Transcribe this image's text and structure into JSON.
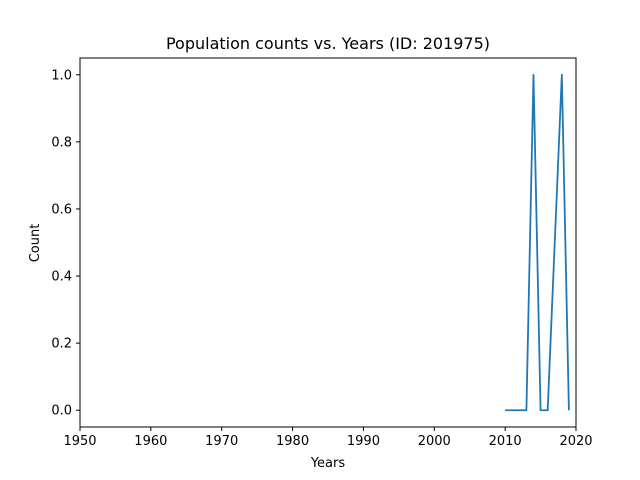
{
  "chart_data": {
    "type": "line",
    "title": "Population counts vs. Years (ID: 201975)",
    "xlabel": "Years",
    "ylabel": "Count",
    "xlim": [
      1950,
      2020
    ],
    "ylim": [
      -0.05,
      1.05
    ],
    "xticks": [
      1950,
      1960,
      1970,
      1980,
      1990,
      2000,
      2010,
      2020
    ],
    "yticks": [
      0.0,
      0.2,
      0.4,
      0.6,
      0.8,
      1.0
    ],
    "ytick_labels": [
      "0.0",
      "0.2",
      "0.4",
      "0.6",
      "0.8",
      "1.0"
    ],
    "grid": false,
    "series": [
      {
        "color": "#1f77b4",
        "x": [
          2010,
          2011,
          2012,
          2013,
          2014,
          2015,
          2016,
          2017,
          2018,
          2019
        ],
        "y": [
          0,
          0,
          0,
          0,
          1,
          0,
          0,
          0.5,
          1,
          0
        ]
      }
    ]
  }
}
